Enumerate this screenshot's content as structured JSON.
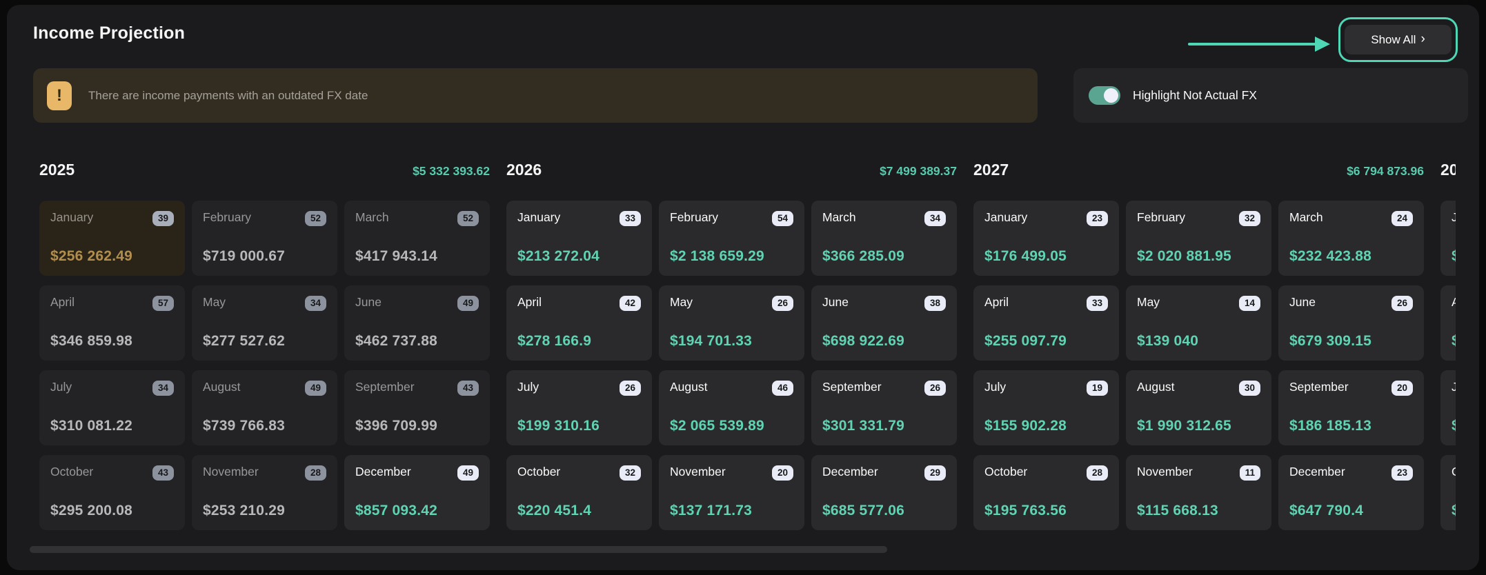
{
  "header": {
    "title": "Income Projection",
    "show_all_label": "Show All",
    "chevron": "›"
  },
  "warning": {
    "icon": "!",
    "text": "There are income payments with an outdated FX date"
  },
  "toggle": {
    "label": "Highlight Not Actual FX",
    "state": "on"
  },
  "colors": {
    "annotation_mint": "#4fd6b5",
    "amount_teal": "#5fd3b2",
    "amount_amber": "#b18e4e",
    "warning_amber": "#e9b768",
    "toggle_on": "#5aa591",
    "panel_bg": "#1b1b1d",
    "page_bg": "#0a0a0b"
  },
  "years": [
    {
      "year": "2025",
      "total": "$5 332 393.62",
      "partial": false,
      "months": [
        {
          "name": "January",
          "count": "39",
          "amount": "$256 262.49",
          "style": "highlight"
        },
        {
          "name": "February",
          "count": "52",
          "amount": "$719 000.67",
          "style": "past"
        },
        {
          "name": "March",
          "count": "52",
          "amount": "$417 943.14",
          "style": "past"
        },
        {
          "name": "April",
          "count": "57",
          "amount": "$346 859.98",
          "style": "past"
        },
        {
          "name": "May",
          "count": "34",
          "amount": "$277 527.62",
          "style": "past"
        },
        {
          "name": "June",
          "count": "49",
          "amount": "$462 737.88",
          "style": "past"
        },
        {
          "name": "July",
          "count": "34",
          "amount": "$310 081.22",
          "style": "past"
        },
        {
          "name": "August",
          "count": "49",
          "amount": "$739 766.83",
          "style": "past"
        },
        {
          "name": "September",
          "count": "43",
          "amount": "$396 709.99",
          "style": "past"
        },
        {
          "name": "October",
          "count": "43",
          "amount": "$295 200.08",
          "style": "past"
        },
        {
          "name": "November",
          "count": "28",
          "amount": "$253 210.29",
          "style": "past"
        },
        {
          "name": "December",
          "count": "49",
          "amount": "$857 093.42",
          "style": "future"
        }
      ]
    },
    {
      "year": "2026",
      "total": "$7 499 389.37",
      "partial": false,
      "months": [
        {
          "name": "January",
          "count": "33",
          "amount": "$213 272.04",
          "style": "future"
        },
        {
          "name": "February",
          "count": "54",
          "amount": "$2 138 659.29",
          "style": "future"
        },
        {
          "name": "March",
          "count": "34",
          "amount": "$366 285.09",
          "style": "future"
        },
        {
          "name": "April",
          "count": "42",
          "amount": "$278 166.9",
          "style": "future"
        },
        {
          "name": "May",
          "count": "26",
          "amount": "$194 701.33",
          "style": "future"
        },
        {
          "name": "June",
          "count": "38",
          "amount": "$698 922.69",
          "style": "future"
        },
        {
          "name": "July",
          "count": "26",
          "amount": "$199 310.16",
          "style": "future"
        },
        {
          "name": "August",
          "count": "46",
          "amount": "$2 065 539.89",
          "style": "future"
        },
        {
          "name": "September",
          "count": "26",
          "amount": "$301 331.79",
          "style": "future"
        },
        {
          "name": "October",
          "count": "32",
          "amount": "$220 451.4",
          "style": "future"
        },
        {
          "name": "November",
          "count": "20",
          "amount": "$137 171.73",
          "style": "future"
        },
        {
          "name": "December",
          "count": "29",
          "amount": "$685 577.06",
          "style": "future"
        }
      ]
    },
    {
      "year": "2027",
      "total": "$6 794 873.96",
      "partial": false,
      "months": [
        {
          "name": "January",
          "count": "23",
          "amount": "$176 499.05",
          "style": "future"
        },
        {
          "name": "February",
          "count": "32",
          "amount": "$2 020 881.95",
          "style": "future"
        },
        {
          "name": "March",
          "count": "24",
          "amount": "$232 423.88",
          "style": "future"
        },
        {
          "name": "April",
          "count": "33",
          "amount": "$255 097.79",
          "style": "future"
        },
        {
          "name": "May",
          "count": "14",
          "amount": "$139 040",
          "style": "future"
        },
        {
          "name": "June",
          "count": "26",
          "amount": "$679 309.15",
          "style": "future"
        },
        {
          "name": "July",
          "count": "19",
          "amount": "$155 902.28",
          "style": "future"
        },
        {
          "name": "August",
          "count": "30",
          "amount": "$1 990 312.65",
          "style": "future"
        },
        {
          "name": "September",
          "count": "20",
          "amount": "$186 185.13",
          "style": "future"
        },
        {
          "name": "October",
          "count": "28",
          "amount": "$195 763.56",
          "style": "future"
        },
        {
          "name": "November",
          "count": "11",
          "amount": "$115 668.13",
          "style": "future"
        },
        {
          "name": "December",
          "count": "23",
          "amount": "$647 790.4",
          "style": "future"
        }
      ]
    },
    {
      "year": "20",
      "total": "",
      "partial": true,
      "months": [
        {
          "name": "J",
          "count": "",
          "amount": "$",
          "style": "future"
        },
        {
          "name": "A",
          "count": "",
          "amount": "$",
          "style": "future"
        },
        {
          "name": "J",
          "count": "",
          "amount": "$",
          "style": "future"
        },
        {
          "name": "O",
          "count": "",
          "amount": "$",
          "style": "future"
        }
      ]
    }
  ]
}
